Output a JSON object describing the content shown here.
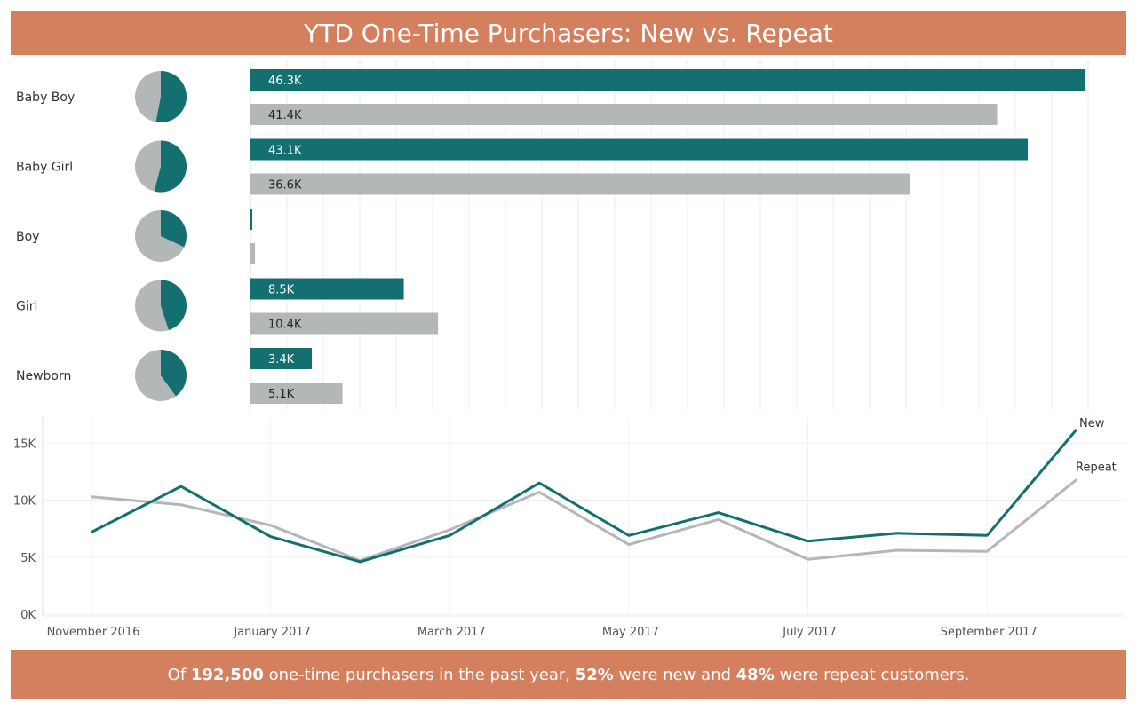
{
  "title": "YTD One-Time Purchasers: New vs. Repeat",
  "footer": {
    "prefix": "Of ",
    "total": "192,500",
    "middle": " one-time purchasers in the past year, ",
    "new_pct": "52%",
    "between": " were new and ",
    "repeat_pct": "48%",
    "suffix": " were repeat customers."
  },
  "colors": {
    "new": "#147070",
    "repeat": "#b4b7b8",
    "banner": "#d4805e"
  },
  "chart_data": [
    {
      "type": "bar",
      "orientation": "horizontal",
      "categories": [
        "Baby Boy",
        "Baby Girl",
        "Boy",
        "Girl",
        "Newborn"
      ],
      "series": [
        {
          "values": [
            46.3,
            43.1,
            0.1,
            8.5,
            3.4
          ],
          "labels": [
            "46.3K",
            "43.1K",
            "",
            "8.5K",
            "3.4K"
          ],
          "color": "#147070"
        },
        {
          "values": [
            41.4,
            36.6,
            0.25,
            10.4,
            5.1
          ],
          "labels": [
            "41.4K",
            "36.6K",
            "",
            "10.4K",
            "5.1K"
          ],
          "color": "#b4b7b8"
        }
      ],
      "xlim": [
        0,
        48
      ],
      "grid": true
    },
    {
      "type": "pie",
      "categories": [
        "Baby Boy",
        "Baby Girl",
        "Boy",
        "Girl",
        "Newborn"
      ],
      "series": [
        {
          "values": [
            0.53,
            0.54,
            0.32,
            0.45,
            0.4
          ],
          "color": "#147070"
        },
        {
          "values": [
            0.47,
            0.46,
            0.68,
            0.55,
            0.6
          ],
          "color": "#b4b7b8"
        }
      ]
    },
    {
      "type": "line",
      "x": [
        "2016-11",
        "2016-12",
        "2017-01",
        "2017-02",
        "2017-03",
        "2017-04",
        "2017-05",
        "2017-06",
        "2017-07",
        "2017-08",
        "2017-09",
        "2017-10"
      ],
      "xtick_labels": [
        "November 2016",
        "January 2017",
        "March 2017",
        "May 2017",
        "July 2017",
        "September 2017"
      ],
      "yticks": [
        "0K",
        "5K",
        "10K",
        "15K"
      ],
      "ylim": [
        0,
        16500
      ],
      "series": [
        {
          "name": "New",
          "values": [
            7200,
            11200,
            6800,
            4600,
            6900,
            11500,
            6900,
            8900,
            6400,
            7100,
            6900,
            16200
          ],
          "color": "#147070"
        },
        {
          "name": "Repeat",
          "values": [
            10300,
            9600,
            7800,
            4700,
            7400,
            10700,
            6100,
            8300,
            4800,
            5600,
            5500,
            11800
          ],
          "color": "#b4b7b8"
        }
      ],
      "grid": true
    }
  ]
}
